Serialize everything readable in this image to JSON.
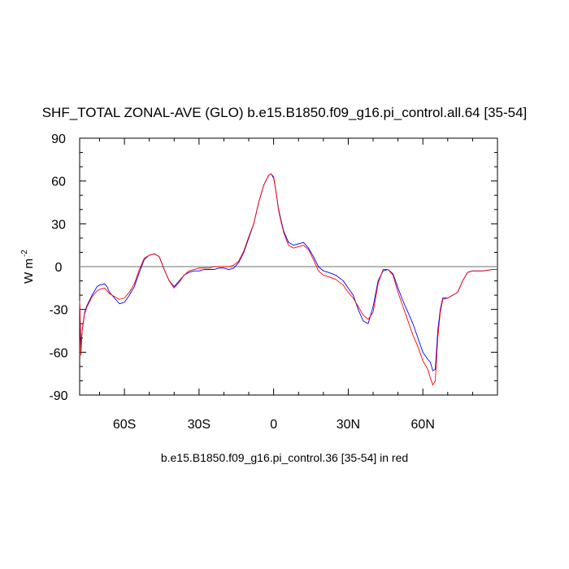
{
  "chart_data": {
    "type": "line",
    "title": "SHF_TOTAL ZONAL-AVE (GLO) b.e15.B1850.f09_g16.pi_control.all.64 [35-54]",
    "ylabel_base": "W m",
    "ylabel_exp": "-2",
    "xlabel": "b.e15.B1850.f09_g16.pi_control.36 [35-54] in red",
    "xlim": [
      -78,
      90
    ],
    "ylim": [
      -90,
      90
    ],
    "x_ticks": [
      -60,
      -30,
      0,
      30,
      60
    ],
    "x_tick_labels": [
      "60S",
      "30S",
      "0",
      "30N",
      "60N"
    ],
    "y_ticks": [
      -90,
      -60,
      -30,
      0,
      30,
      60,
      90
    ],
    "y_tick_labels": [
      "-90",
      "-60",
      "-30",
      "0",
      "30",
      "60",
      "90"
    ],
    "reference_line_y": 0,
    "series": [
      {
        "color": "#0000ff",
        "x": [
          -78,
          -77.5,
          -77,
          -76,
          -75,
          -73,
          -71,
          -70,
          -68,
          -67,
          -66,
          -64,
          -62,
          -60,
          -58,
          -56,
          -54,
          -52,
          -50,
          -48,
          -46,
          -44,
          -42,
          -40,
          -38,
          -36,
          -34,
          -32,
          -30,
          -28,
          -26,
          -24,
          -22,
          -20,
          -18,
          -16,
          -14,
          -12,
          -10,
          -8,
          -6,
          -4,
          -2,
          -1,
          0,
          1,
          2,
          4,
          6,
          8,
          10,
          12,
          14,
          16,
          18,
          20,
          22,
          25,
          28,
          30,
          32,
          34,
          36,
          38,
          40,
          42,
          44,
          46,
          48,
          50,
          52,
          54,
          56,
          58,
          60,
          62,
          63,
          64,
          65,
          66,
          67,
          68,
          70,
          72,
          74,
          76,
          78,
          80,
          84,
          88,
          90
        ],
        "y": [
          -24,
          -55,
          -45,
          -32,
          -27,
          -20,
          -14,
          -13,
          -12,
          -14,
          -18,
          -22,
          -26,
          -25,
          -20,
          -14,
          -4,
          5,
          8,
          9,
          7,
          -2,
          -10,
          -14,
          -10,
          -6,
          -4,
          -3,
          -3,
          -2,
          -2,
          -2,
          -1,
          -1,
          -2,
          -1,
          3,
          10,
          20,
          30,
          45,
          57,
          64,
          65,
          62,
          52,
          40,
          25,
          17,
          15,
          16,
          17,
          13,
          7,
          0,
          -3,
          -4,
          -6,
          -10,
          -15,
          -20,
          -30,
          -38,
          -40,
          -28,
          -10,
          -3,
          -2,
          -5,
          -15,
          -24,
          -32,
          -40,
          -50,
          -60,
          -65,
          -67,
          -73,
          -72,
          -45,
          -30,
          -22,
          -22,
          -20,
          -18,
          -10,
          -4,
          -3,
          -3,
          -2,
          -2
        ]
      },
      {
        "color": "#ff0000",
        "x": [
          -78,
          -77.5,
          -77,
          -76,
          -75,
          -73,
          -71,
          -70,
          -68,
          -67,
          -66,
          -64,
          -62,
          -60,
          -58,
          -56,
          -54,
          -52,
          -50,
          -48,
          -46,
          -44,
          -42,
          -40,
          -38,
          -36,
          -34,
          -32,
          -30,
          -28,
          -26,
          -24,
          -22,
          -20,
          -18,
          -16,
          -14,
          -12,
          -10,
          -8,
          -6,
          -4,
          -2,
          -1,
          0,
          1,
          2,
          4,
          6,
          8,
          10,
          12,
          14,
          16,
          18,
          20,
          22,
          25,
          28,
          30,
          32,
          34,
          36,
          38,
          40,
          42,
          44,
          46,
          48,
          50,
          52,
          54,
          56,
          58,
          60,
          62,
          63,
          64,
          65,
          66,
          67,
          68,
          70,
          72,
          74,
          76,
          78,
          80,
          84,
          88,
          90
        ],
        "y": [
          -24,
          -62,
          -45,
          -33,
          -28,
          -21,
          -17,
          -16,
          -15,
          -17,
          -19,
          -21,
          -23,
          -22,
          -18,
          -12,
          -2,
          6,
          8,
          9,
          7,
          -2,
          -10,
          -15,
          -11,
          -6,
          -3,
          -2,
          -1,
          -1,
          -1,
          0,
          0,
          0,
          0,
          1,
          4,
          11,
          21,
          30,
          45,
          57,
          64,
          65,
          63,
          52,
          39,
          24,
          15,
          13,
          14,
          15,
          12,
          5,
          -3,
          -6,
          -7,
          -9,
          -13,
          -18,
          -22,
          -28,
          -34,
          -37,
          -32,
          -12,
          -2,
          -2,
          -6,
          -18,
          -28,
          -38,
          -48,
          -56,
          -66,
          -72,
          -78,
          -83,
          -80,
          -50,
          -32,
          -23,
          -22,
          -20,
          -18,
          -10,
          -4,
          -3,
          -3,
          -2,
          -2
        ]
      }
    ]
  }
}
